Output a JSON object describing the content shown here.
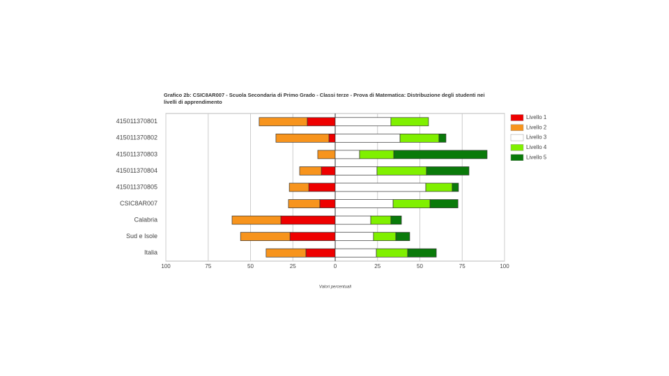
{
  "chart_data": {
    "type": "diverging-bar",
    "title": "Grafico 2b: CSIC8AR007 - Scuola Secondaria di Primo Grado - Classi terze - Prova di Matematica: Distribuzione degli studenti nei livelli di apprendimento",
    "x_label": "Valori percentuali",
    "categories": [
      "415011370801",
      "415011370802",
      "415011370803",
      "415011370804",
      "415011370805",
      "CSIC8AR007",
      "Calabria",
      "Sud e Isole",
      "Italia"
    ],
    "series": [
      {
        "name": "Livello 1",
        "color": "#ee0000",
        "values": [
          -16.5,
          -3.7,
          0,
          -8.2,
          -15.6,
          -9.1,
          -32.1,
          -26.7,
          -17.3
        ]
      },
      {
        "name": "Livello 2",
        "color": "#f7941d",
        "values": [
          -28.4,
          -31.3,
          -10.3,
          -12.8,
          -11.5,
          -18.5,
          -28.8,
          -29.2,
          -23.5
        ]
      },
      {
        "name": "Livello 3",
        "color": "#ffffff",
        "values": [
          32.9,
          38.3,
          14.4,
          24.7,
          53.5,
          34.2,
          21.0,
          22.6,
          24.3
        ]
      },
      {
        "name": "Livello 4",
        "color": "#80f000",
        "values": [
          22.2,
          23.0,
          20.2,
          29.2,
          15.6,
          21.8,
          11.9,
          13.2,
          18.5
        ]
      },
      {
        "name": "Livello 5",
        "color": "#0a7a0a",
        "values": [
          0,
          4.1,
          55.1,
          25.1,
          3.7,
          16.5,
          6.2,
          8.2,
          16.9
        ]
      }
    ],
    "xlim": [
      -100,
      100
    ],
    "xticks": [
      {
        "value": -100,
        "label": "100"
      },
      {
        "value": -75,
        "label": "75"
      },
      {
        "value": -50,
        "label": "50"
      },
      {
        "value": -25,
        "label": "25"
      },
      0,
      25,
      50,
      75,
      100
    ],
    "grid": true,
    "legend": "right"
  }
}
